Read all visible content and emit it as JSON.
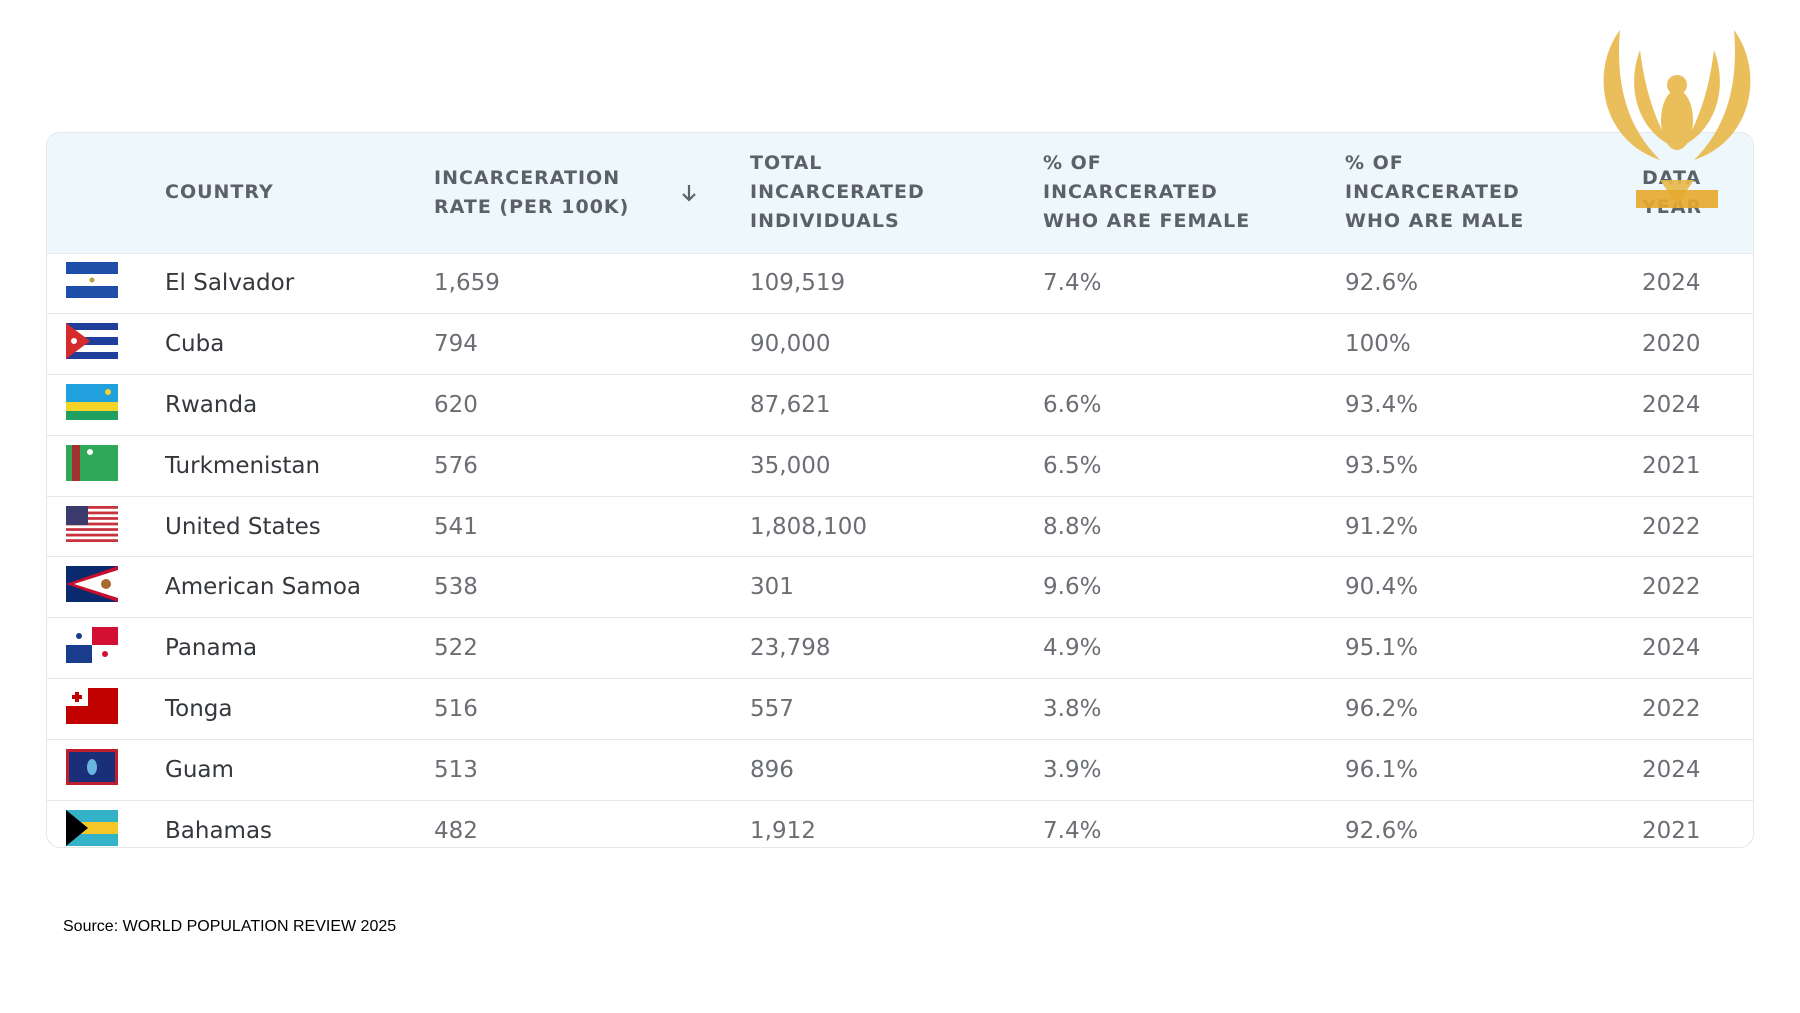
{
  "table": {
    "header": [
      "COUNTRY",
      "INCARCERATION RATE (PER 100K)",
      "TOTAL INCARCERATED INDIVIDUALS",
      "% OF INCARCERATED WHO ARE FEMALE",
      "% OF INCARCERATED WHO ARE MALE",
      "DATA YEAR"
    ],
    "rows": [
      [
        "El Salvador",
        "1,659",
        "109,519",
        "7.4%",
        "92.6%",
        "2024"
      ],
      [
        "Cuba",
        "794",
        "90,000",
        null,
        "100%",
        "2020"
      ],
      [
        "Rwanda",
        "620",
        "87,621",
        "6.6%",
        "93.4%",
        "2024"
      ],
      [
        "Turkmenistan",
        "576",
        "35,000",
        "6.5%",
        "93.5%",
        "2021"
      ],
      [
        "United States",
        "541",
        "1,808,100",
        "8.8%",
        "91.2%",
        "2022"
      ],
      [
        "American Samoa",
        "538",
        "301",
        "9.6%",
        "90.4%",
        "2022"
      ],
      [
        "Panama",
        "522",
        "23,798",
        "4.9%",
        "95.1%",
        "2024"
      ],
      [
        "Tonga",
        "516",
        "557",
        "3.8%",
        "96.2%",
        "2022"
      ],
      [
        "Guam",
        "513",
        "896",
        "3.9%",
        "96.1%",
        "2024"
      ],
      [
        "Bahamas",
        "482",
        "1,912",
        "7.4%",
        "92.6%",
        "2021"
      ]
    ]
  },
  "source": "Source: WORLD POPULATION REVIEW 2025"
}
